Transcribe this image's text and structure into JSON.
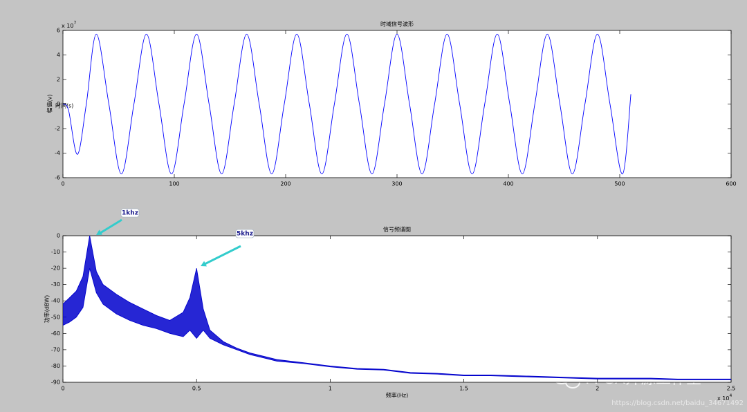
{
  "chart_data": [
    {
      "type": "line",
      "title": "时域信号波形",
      "x_label": "时间(s)",
      "y_label": "幅值(v)",
      "y_multiplier": {
        "base": "x 10",
        "exponent": "7"
      },
      "x": [
        0,
        5,
        13,
        21,
        30,
        41.25,
        52.5,
        63.75,
        75,
        86.25,
        97.5,
        108.75,
        120,
        131.25,
        142.5,
        153.75,
        165,
        176.25,
        187.5,
        198.75,
        210,
        221.25,
        232.5,
        243.75,
        255,
        266.25,
        277.5,
        288.75,
        300,
        311.25,
        322.5,
        333.75,
        345,
        356.25,
        367.5,
        378.75,
        390,
        401.25,
        412.5,
        423.75,
        435,
        446.25,
        457.5,
        468.75,
        480,
        491.25,
        502.5,
        510
      ],
      "series": [
        {
          "color": "#0000ff",
          "values": [
            0,
            -0.5,
            -4.1,
            0,
            5.7,
            0,
            -5.7,
            0,
            5.7,
            0,
            -5.7,
            0,
            5.7,
            0,
            -5.7,
            0,
            5.7,
            0,
            -5.7,
            0,
            5.7,
            0,
            -5.7,
            0,
            5.7,
            0,
            -5.7,
            0,
            5.7,
            0,
            -5.7,
            0,
            5.7,
            0,
            -5.7,
            0,
            5.7,
            0,
            -5.7,
            0,
            5.7,
            0,
            -5.7,
            0,
            5.7,
            0,
            -5.7,
            0.8
          ]
        }
      ],
      "xlim": [
        0,
        600
      ],
      "xticks": [
        0,
        100,
        200,
        300,
        400,
        500,
        600
      ],
      "ylim": [
        -6,
        6
      ],
      "yticks": [
        -6,
        -4,
        -2,
        0,
        2,
        4,
        6
      ]
    },
    {
      "type": "line",
      "title": "信号频谱图",
      "x_label": "频率(Hz)",
      "y_label": "功率(dBW)",
      "x_multiplier": {
        "base": "x 10",
        "exponent": "4"
      },
      "annotations": [
        {
          "text": "1khz"
        },
        {
          "text": "5khz"
        }
      ],
      "x": [
        0,
        250,
        500,
        750,
        1000,
        1250,
        1500,
        2000,
        2500,
        3000,
        3500,
        4000,
        4500,
        4750,
        5000,
        5250,
        5500,
        6000,
        6500,
        7000,
        8000,
        9000,
        10000,
        11000,
        12000,
        13000,
        14000,
        15000,
        16000,
        17000,
        18000,
        19000,
        20000,
        21000,
        22000,
        23000,
        24000,
        25000
      ],
      "series": [
        {
          "color": "#0000cc",
          "values": [
            -42,
            -38,
            -34,
            -25,
            0,
            -22,
            -30,
            -36,
            -41,
            -45,
            -49,
            -52,
            -47,
            -38,
            -20,
            -45,
            -58,
            -65,
            -69,
            -72,
            -76,
            -78,
            -80,
            -81.5,
            -82,
            -84,
            -84.5,
            -85.5,
            -85.5,
            -86,
            -86.5,
            -87,
            -87.5,
            -87.5,
            -87.5,
            -88,
            -88,
            -88
          ]
        },
        {
          "color": "#0000cc",
          "values": [
            -55,
            -53,
            -50,
            -44,
            -20,
            -35,
            -42,
            -48,
            -52,
            -55,
            -57,
            -60,
            -62,
            -58,
            -63,
            -58,
            -63,
            -67,
            -70,
            -73,
            -77,
            -78.5,
            -80.5,
            -82,
            -82.5,
            -84.5,
            -85,
            -86,
            -86,
            -86.5,
            -87,
            -87.5,
            -88,
            -88,
            -88,
            -88.5,
            -88.5,
            -88.5
          ]
        }
      ],
      "xlim": [
        0,
        25000
      ],
      "xticks": [
        0,
        {
          "value": 5000,
          "label": "0.5"
        },
        {
          "value": 10000,
          "label": "1"
        },
        {
          "value": 15000,
          "label": "1.5"
        },
        {
          "value": 20000,
          "label": "2"
        },
        {
          "value": 25000,
          "label": "2.5"
        }
      ],
      "ylim": [
        -90,
        0
      ],
      "yticks": [
        -90,
        -80,
        -70,
        -60,
        -50,
        -40,
        -30,
        -20,
        -10,
        0
      ]
    }
  ],
  "watermark": {
    "brand": "FPGA开源工作室",
    "url": "https://blog.csdn.net/baidu_34671492"
  }
}
